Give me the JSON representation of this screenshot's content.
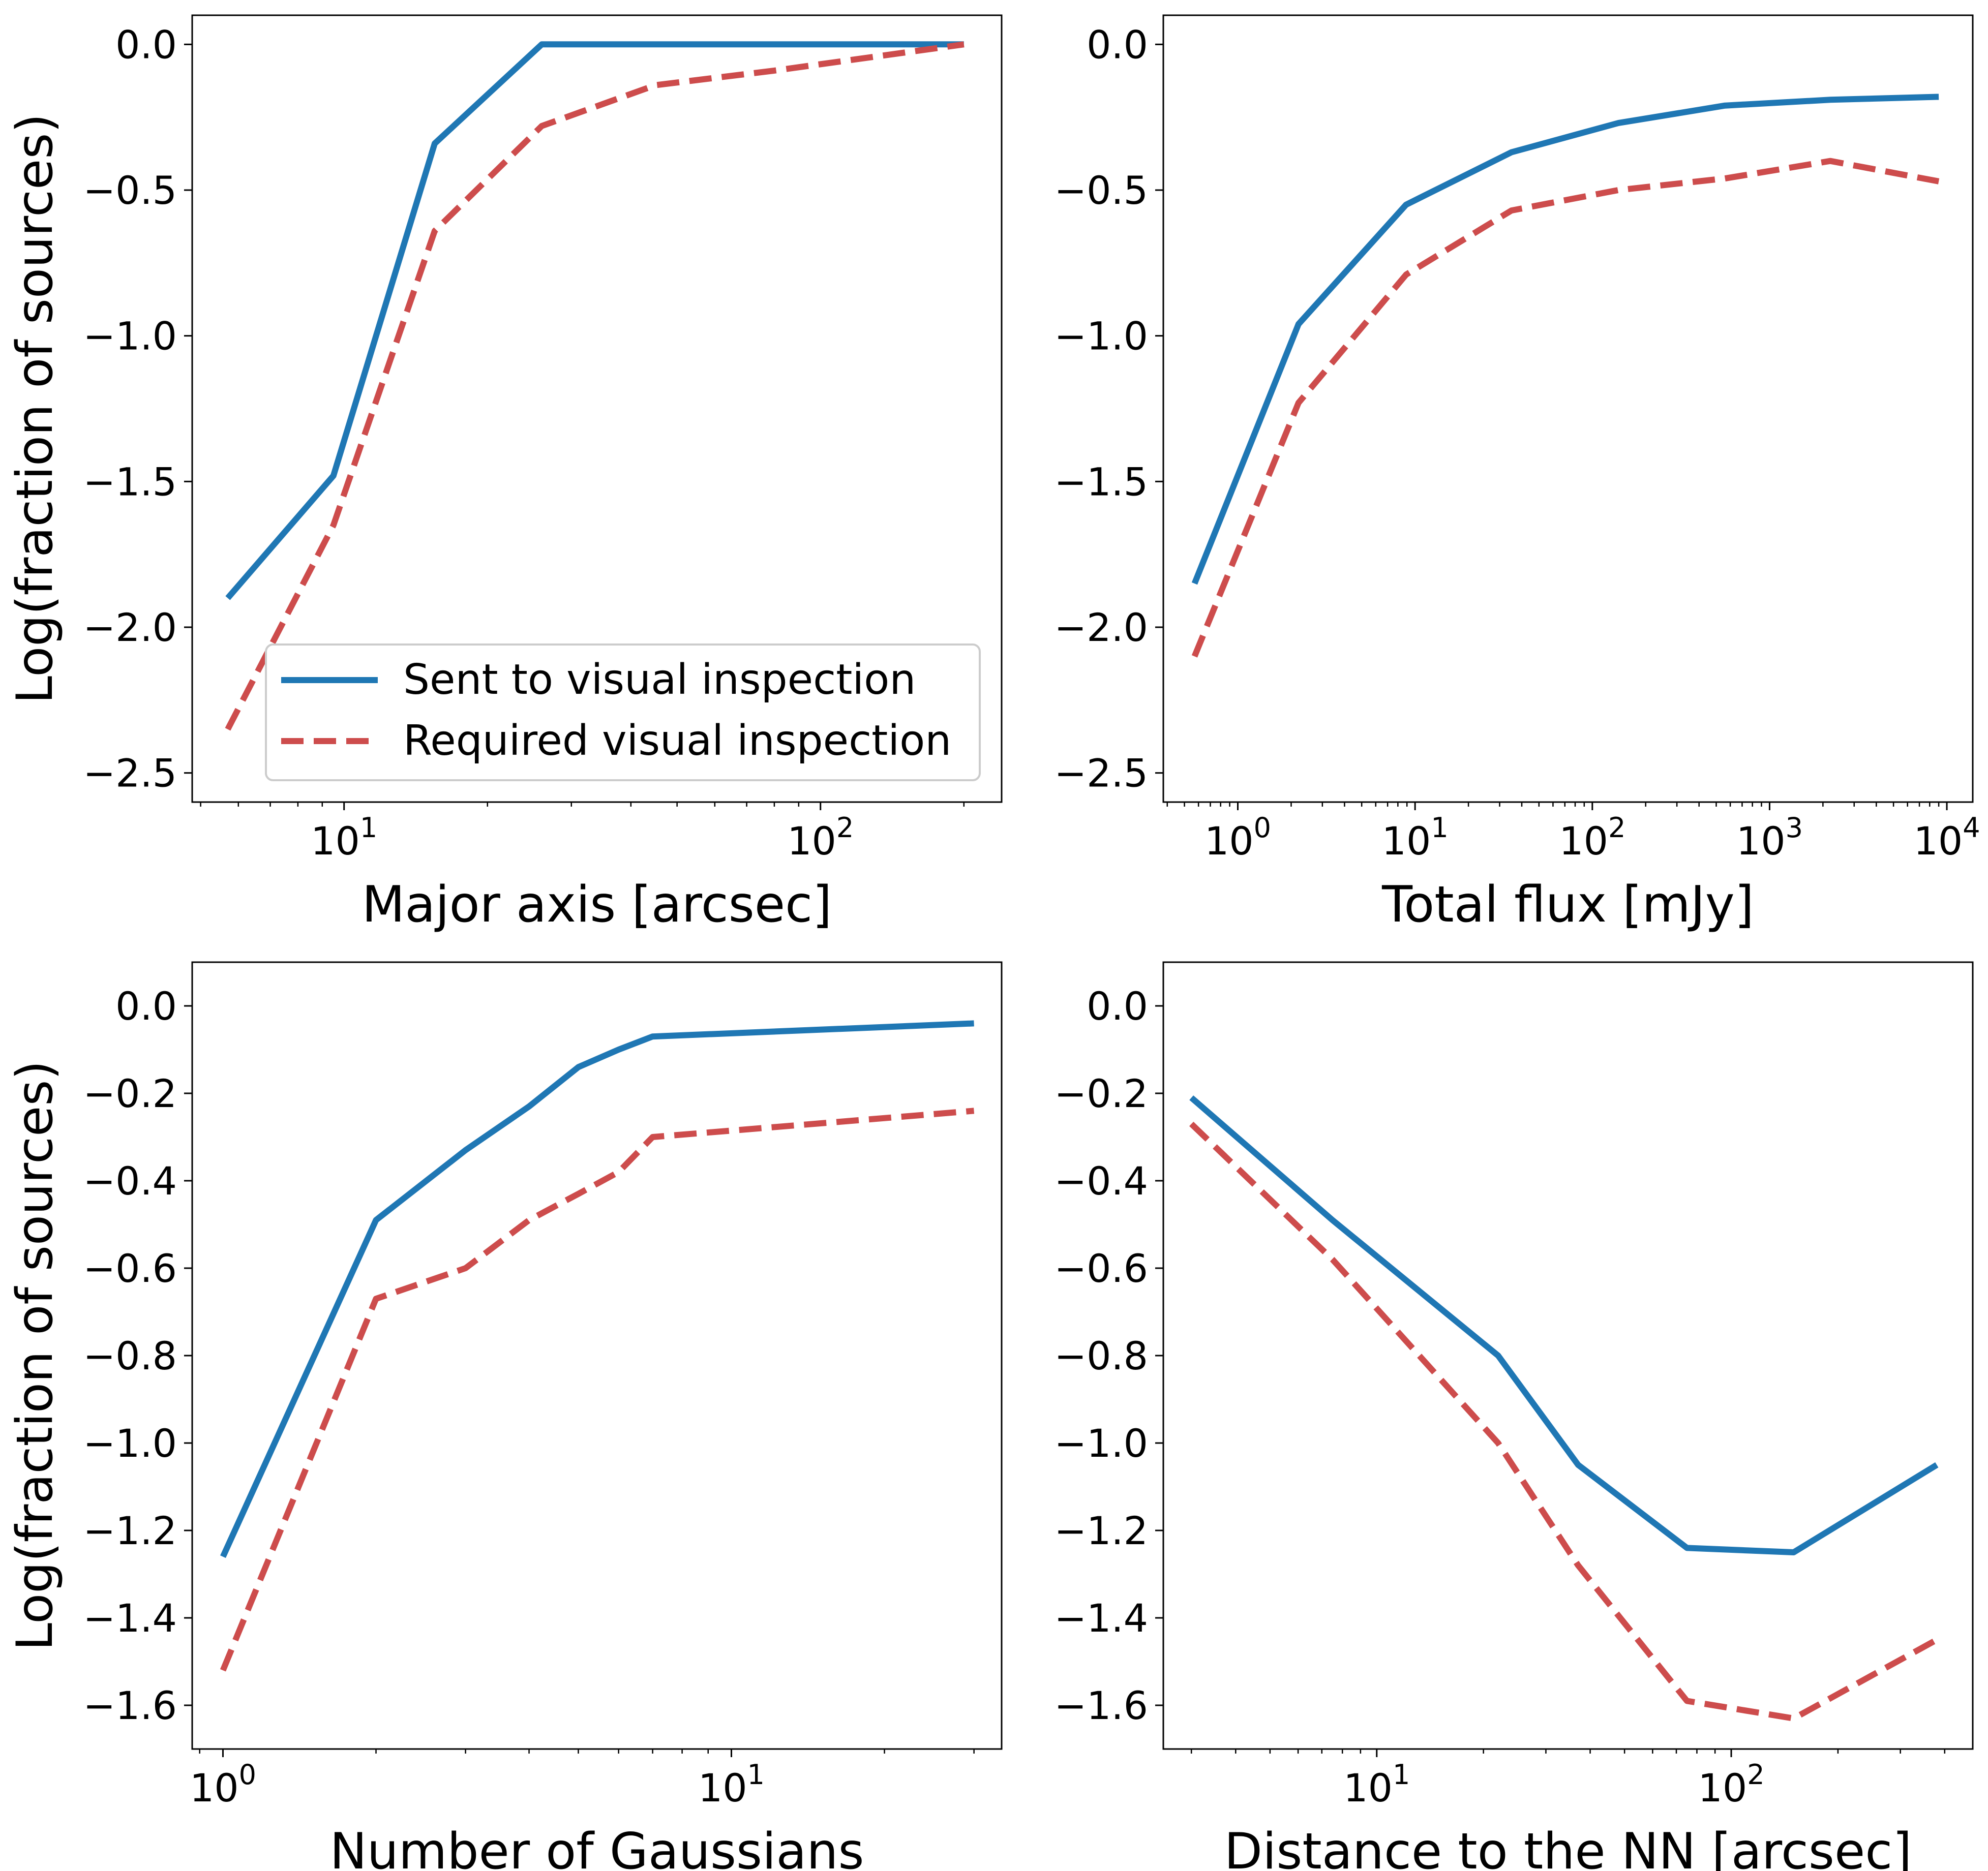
{
  "colors": {
    "sent": "#1f77b4",
    "required": "#cd4c4c"
  },
  "legend": {
    "sent_label": "Sent to visual inspection",
    "required_label": "Required visual inspection",
    "placement": "lower-right of top-left panel"
  },
  "chart_data": [
    {
      "type": "line",
      "xlabel": "Major axis [arcsec]",
      "ylabel": "Log(fraction of sources)",
      "xscale": "log",
      "xlim": [
        4.8,
        240
      ],
      "ylim": [
        -2.6,
        0.1
      ],
      "xticks": [
        {
          "value": 10,
          "base": "10",
          "exp": "1"
        },
        {
          "value": 100,
          "base": "10",
          "exp": "2"
        }
      ],
      "yticks": [
        {
          "value": 0.0,
          "label": "0.0"
        },
        {
          "value": -0.5,
          "label": "−0.5"
        },
        {
          "value": -1.0,
          "label": "−1.0"
        },
        {
          "value": -1.5,
          "label": "−1.5"
        },
        {
          "value": -2.0,
          "label": "−2.0"
        },
        {
          "value": -2.5,
          "label": "−2.5"
        }
      ],
      "show_legend": true,
      "series": [
        {
          "name": "Sent to visual inspection",
          "x": [
            5.7,
            9.5,
            15.5,
            26,
            45,
            80,
            200
          ],
          "y": [
            -1.9,
            -1.48,
            -0.34,
            0.0,
            0.0,
            0.0,
            0.0
          ]
        },
        {
          "name": "Required visual inspection",
          "x": [
            5.7,
            9.5,
            15.5,
            26,
            45,
            80,
            200
          ],
          "y": [
            -2.35,
            -1.65,
            -0.64,
            -0.28,
            -0.14,
            -0.09,
            0.0
          ]
        }
      ]
    },
    {
      "type": "line",
      "xlabel": "Total flux [mJy]",
      "ylabel": "",
      "xscale": "log",
      "xlim": [
        0.38,
        14000
      ],
      "ylim": [
        -2.6,
        0.1
      ],
      "xticks": [
        {
          "value": 1,
          "base": "10",
          "exp": "0"
        },
        {
          "value": 10,
          "base": "10",
          "exp": "1"
        },
        {
          "value": 100,
          "base": "10",
          "exp": "2"
        },
        {
          "value": 1000,
          "base": "10",
          "exp": "3"
        },
        {
          "value": 10000,
          "base": "10",
          "exp": "4"
        }
      ],
      "yticks": [
        {
          "value": 0.0,
          "label": "0.0"
        },
        {
          "value": -0.5,
          "label": "−0.5"
        },
        {
          "value": -1.0,
          "label": "−1.0"
        },
        {
          "value": -1.5,
          "label": "−1.5"
        },
        {
          "value": -2.0,
          "label": "−2.0"
        },
        {
          "value": -2.5,
          "label": "−2.5"
        }
      ],
      "show_legend": false,
      "series": [
        {
          "name": "Sent to visual inspection",
          "x": [
            0.57,
            2.2,
            8.9,
            35,
            140,
            560,
            2200,
            9000
          ],
          "y": [
            -1.85,
            -0.96,
            -0.55,
            -0.37,
            -0.27,
            -0.21,
            -0.19,
            -0.18
          ]
        },
        {
          "name": "Required visual inspection",
          "x": [
            0.57,
            2.2,
            8.9,
            35,
            140,
            560,
            2200,
            9000
          ],
          "y": [
            -2.1,
            -1.23,
            -0.79,
            -0.57,
            -0.5,
            -0.46,
            -0.4,
            -0.47
          ]
        }
      ]
    },
    {
      "type": "line",
      "xlabel": "Number of Gaussians",
      "ylabel": "Log(fraction of sources)",
      "xscale": "log",
      "xlim": [
        0.87,
        34
      ],
      "ylim": [
        -1.7,
        0.1
      ],
      "xticks": [
        {
          "value": 1,
          "base": "10",
          "exp": "0"
        },
        {
          "value": 10,
          "base": "10",
          "exp": "1"
        }
      ],
      "yticks": [
        {
          "value": 0.0,
          "label": "0.0"
        },
        {
          "value": -0.2,
          "label": "−0.2"
        },
        {
          "value": -0.4,
          "label": "−0.4"
        },
        {
          "value": -0.6,
          "label": "−0.6"
        },
        {
          "value": -0.8,
          "label": "−0.8"
        },
        {
          "value": -1.0,
          "label": "−1.0"
        },
        {
          "value": -1.2,
          "label": "−1.2"
        },
        {
          "value": -1.4,
          "label": "−1.4"
        },
        {
          "value": -1.6,
          "label": "−1.6"
        }
      ],
      "show_legend": false,
      "series": [
        {
          "name": "Sent to visual inspection",
          "x": [
            1,
            2,
            3,
            4,
            5,
            6,
            7,
            30
          ],
          "y": [
            -1.26,
            -0.49,
            -0.33,
            -0.23,
            -0.14,
            -0.1,
            -0.07,
            -0.04
          ]
        },
        {
          "name": "Required visual inspection",
          "x": [
            1,
            2,
            3,
            4,
            5,
            6,
            7,
            30
          ],
          "y": [
            -1.52,
            -0.67,
            -0.6,
            -0.49,
            -0.43,
            -0.38,
            -0.3,
            -0.24
          ]
        }
      ]
    },
    {
      "type": "line",
      "xlabel": "Distance to the NN [arcsec]",
      "ylabel": "",
      "xscale": "log",
      "xlim": [
        2.5,
        480
      ],
      "ylim": [
        -1.7,
        0.1
      ],
      "xticks": [
        {
          "value": 10,
          "base": "10",
          "exp": "1"
        },
        {
          "value": 100,
          "base": "10",
          "exp": "2"
        }
      ],
      "yticks": [
        {
          "value": 0.0,
          "label": "0.0"
        },
        {
          "value": -0.2,
          "label": "−0.2"
        },
        {
          "value": -0.4,
          "label": "−0.4"
        },
        {
          "value": -0.6,
          "label": "−0.6"
        },
        {
          "value": -0.8,
          "label": "−0.8"
        },
        {
          "value": -1.0,
          "label": "−1.0"
        },
        {
          "value": -1.2,
          "label": "−1.2"
        },
        {
          "value": -1.4,
          "label": "−1.4"
        },
        {
          "value": -1.6,
          "label": "−1.6"
        }
      ],
      "show_legend": false,
      "series": [
        {
          "name": "Sent to visual inspection",
          "x": [
            3.0,
            7.5,
            22,
            37,
            75,
            150,
            380
          ],
          "y": [
            -0.21,
            -0.49,
            -0.8,
            -1.05,
            -1.24,
            -1.25,
            -1.05
          ]
        },
        {
          "name": "Required visual inspection",
          "x": [
            3.0,
            7.5,
            22,
            37,
            75,
            150,
            380
          ],
          "y": [
            -0.27,
            -0.58,
            -1.0,
            -1.28,
            -1.59,
            -1.63,
            -1.45
          ]
        }
      ]
    }
  ]
}
